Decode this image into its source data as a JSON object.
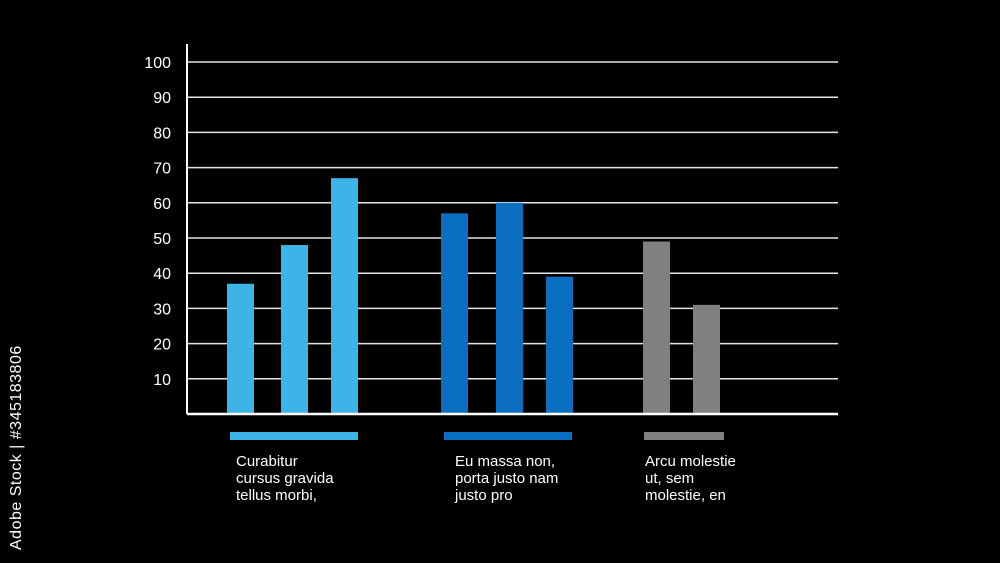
{
  "chart_data": {
    "type": "bar",
    "title": "",
    "xlabel": "",
    "ylabel": "",
    "ylim": [
      0,
      100
    ],
    "yticks": [
      10,
      20,
      30,
      40,
      50,
      60,
      70,
      80,
      90,
      100
    ],
    "grid": true,
    "groups": [
      {
        "label": "Curabitur\ncursus gravida\ntellus morbi,",
        "color": "#3cb4e8",
        "values": [
          37,
          48,
          67
        ]
      },
      {
        "label": "Eu massa non,\nporta justo nam\njusto pro",
        "color": "#0a6fc0",
        "values": [
          57,
          60,
          39
        ]
      },
      {
        "label": "Arcu molestie\nut, sem\nmolestie, en",
        "color": "#808080",
        "values": [
          49,
          31
        ]
      }
    ]
  },
  "watermark": {
    "stock_id": "Adobe Stock | #345183806"
  }
}
